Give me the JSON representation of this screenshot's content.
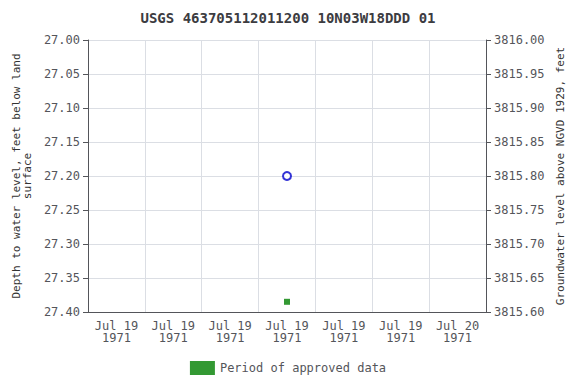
{
  "chart_data": {
    "type": "scatter",
    "title": "USGS 463705112011200 10N03W18DDD 01",
    "ylabel": "Depth to water level, feet below land\nsurface",
    "y2label": "Groundwater level above NGVD 1929, feet",
    "categories": [
      "Jul 19\n1971",
      "Jul 19\n1971",
      "Jul 19\n1971",
      "Jul 19\n1971",
      "Jul 19\n1971",
      "Jul 19\n1971",
      "Jul 20\n1971"
    ],
    "series": [
      {
        "color": "#0000cc",
        "marker": "emptyCircle",
        "values": [
          null,
          null,
          null,
          27.2,
          null,
          null,
          null
        ]
      },
      {
        "name": "Period of approved data",
        "color": "#008000",
        "marker": "rect",
        "values": [
          null,
          null,
          null,
          27.385,
          null,
          null,
          null
        ]
      }
    ],
    "ylim": [
      27.4,
      27.0
    ],
    "yticks": [
      {
        "value": 27.0,
        "label": "27.00"
      },
      27.05,
      {
        "value": 27.1,
        "label": "27.10"
      },
      27.15,
      {
        "value": 27.2,
        "label": "27.20"
      },
      27.25,
      {
        "value": 27.3,
        "label": "27.30"
      },
      27.35,
      {
        "value": 27.4,
        "label": "27.40"
      }
    ],
    "y2lim": [
      3815.6,
      3816.0
    ],
    "y2ticks": [
      {
        "value": 3815.6,
        "label": "3815.60"
      },
      3815.65,
      {
        "value": 3815.7,
        "label": "3815.70"
      },
      3815.75,
      {
        "value": 3815.8,
        "label": "3815.80"
      },
      3815.85,
      {
        "value": 3815.9,
        "label": "3815.90"
      },
      3815.95,
      {
        "value": 3816.0,
        "label": "3816.00"
      }
    ],
    "grid": true,
    "legend": "bottom"
  }
}
